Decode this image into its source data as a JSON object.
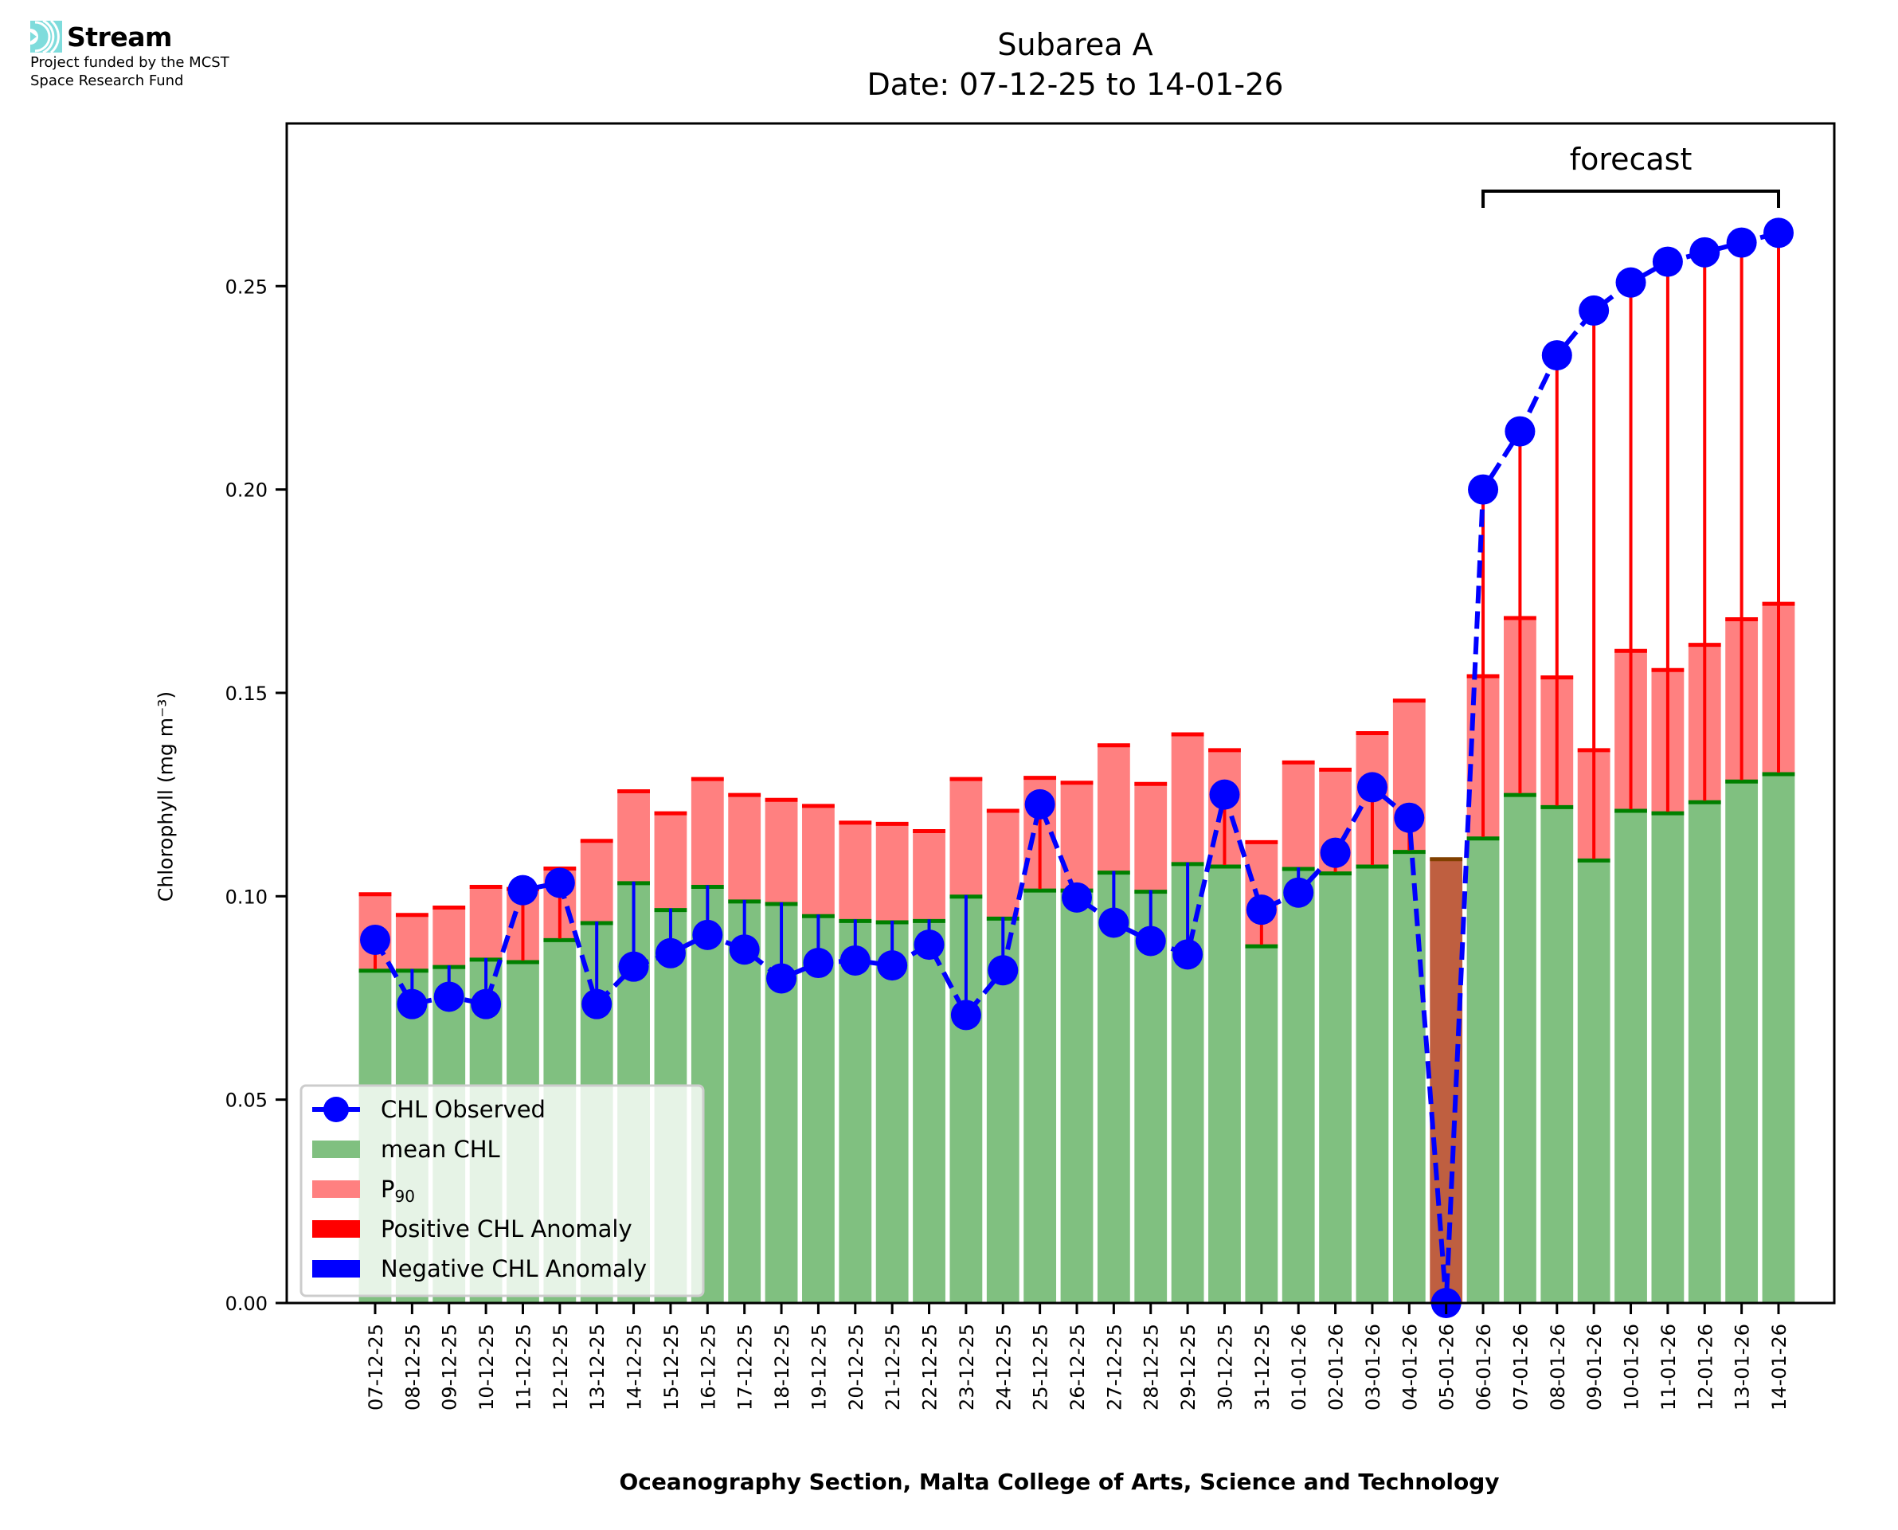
{
  "logo": {
    "name": "Stream",
    "icon": "stream-waves-icon",
    "subtitle_lines": [
      "Project funded by the MCST",
      "Space Research Fund"
    ]
  },
  "colors": {
    "mean_fill": "#80c080",
    "mean_edge": "#008000",
    "p90_fill": "#ff8080",
    "p90_edge": "#ff0000",
    "positive_anomaly": "#ff0000",
    "negative_anomaly": "#0000ff",
    "observed": "#0000ff",
    "overlap_fill": "#bf5f40",
    "overlap_edge": "#804000",
    "logo_accent": "#7fdcdc"
  },
  "chart_data": {
    "type": "bar",
    "title": "Subarea A",
    "subtitle": "Date: 07-12-25 to 14-01-26",
    "xlabel": "Oceanography Section, Malta College of Arts, Science and Technology",
    "ylabel": "Chlorophyll (mg m⁻³)",
    "ylim": [
      0,
      0.29
    ],
    "yticks": [
      0.0,
      0.05,
      0.1,
      0.15,
      0.2,
      0.25
    ],
    "ytick_labels": [
      "0.00",
      "0.05",
      "0.10",
      "0.15",
      "0.20",
      "0.25"
    ],
    "grid": false,
    "legend_position": "lower-left",
    "legend": [
      {
        "label": "CHL Observed",
        "kind": "line-marker"
      },
      {
        "label": "mean CHL",
        "kind": "patch-mean"
      },
      {
        "label": "P",
        "sub": "90",
        "kind": "patch-p90"
      },
      {
        "label": "Positive CHL Anomaly",
        "kind": "patch-pos"
      },
      {
        "label": "Negative CHL Anomaly",
        "kind": "patch-neg"
      }
    ],
    "annotation": {
      "text": "forecast",
      "from": "06-01-26",
      "to": "14-01-26"
    },
    "categories": [
      "07-12-25",
      "08-12-25",
      "09-12-25",
      "10-12-25",
      "11-12-25",
      "12-12-25",
      "13-12-25",
      "14-12-25",
      "15-12-25",
      "16-12-25",
      "17-12-25",
      "18-12-25",
      "19-12-25",
      "20-12-25",
      "21-12-25",
      "22-12-25",
      "23-12-25",
      "24-12-25",
      "25-12-25",
      "26-12-25",
      "27-12-25",
      "28-12-25",
      "29-12-25",
      "30-12-25",
      "31-12-25",
      "01-01-26",
      "02-01-26",
      "03-01-26",
      "04-01-26",
      "05-01-26",
      "06-01-26",
      "07-01-26",
      "08-01-26",
      "09-01-26",
      "10-01-26",
      "11-01-26",
      "12-01-26",
      "13-01-26",
      "14-01-26"
    ],
    "series": [
      {
        "name": "mean CHL",
        "values": [
          0.0821,
          0.0821,
          0.083,
          0.0848,
          0.0842,
          0.0896,
          0.0938,
          0.1036,
          0.097,
          0.1027,
          0.0991,
          0.0985,
          0.0955,
          0.0943,
          0.094,
          0.0943,
          0.1003,
          0.0949,
          0.1018,
          0.1018,
          0.1062,
          0.1015,
          0.1083,
          0.1077,
          0.0881,
          0.1071,
          0.106,
          0.1077,
          0.1113,
          0.1095,
          0.1146,
          0.1253,
          0.1223,
          0.1092,
          0.1214,
          0.1208,
          0.1235,
          0.1286,
          0.1304
        ]
      },
      {
        "name": "P90",
        "values": [
          0.1009,
          0.0958,
          0.0976,
          0.1027,
          0.1022,
          0.1072,
          0.114,
          0.1262,
          0.1208,
          0.1292,
          0.1253,
          0.1241,
          0.1226,
          0.1185,
          0.1182,
          0.1164,
          0.1292,
          0.1214,
          0.1295,
          0.1283,
          0.1375,
          0.128,
          0.1402,
          0.1363,
          0.1137,
          0.1333,
          0.1315,
          0.1405,
          0.1485,
          0.1095,
          0.1545,
          0.1688,
          0.1542,
          0.1363,
          0.1607,
          0.156,
          0.1622,
          0.1685,
          0.1723
        ]
      },
      {
        "name": "CHL Observed",
        "values": [
          0.0893,
          0.0735,
          0.0753,
          0.0735,
          0.1015,
          0.1033,
          0.0735,
          0.0827,
          0.086,
          0.0905,
          0.0869,
          0.0798,
          0.0836,
          0.0842,
          0.083,
          0.0881,
          0.0708,
          0.0818,
          0.1226,
          0.0997,
          0.0935,
          0.089,
          0.0857,
          0.125,
          0.0967,
          0.1009,
          0.1107,
          0.1268,
          0.1193,
          0.0,
          0.2,
          0.2143,
          0.233,
          0.244,
          0.2509,
          0.256,
          0.2583,
          0.2607,
          0.2631
        ]
      }
    ]
  }
}
